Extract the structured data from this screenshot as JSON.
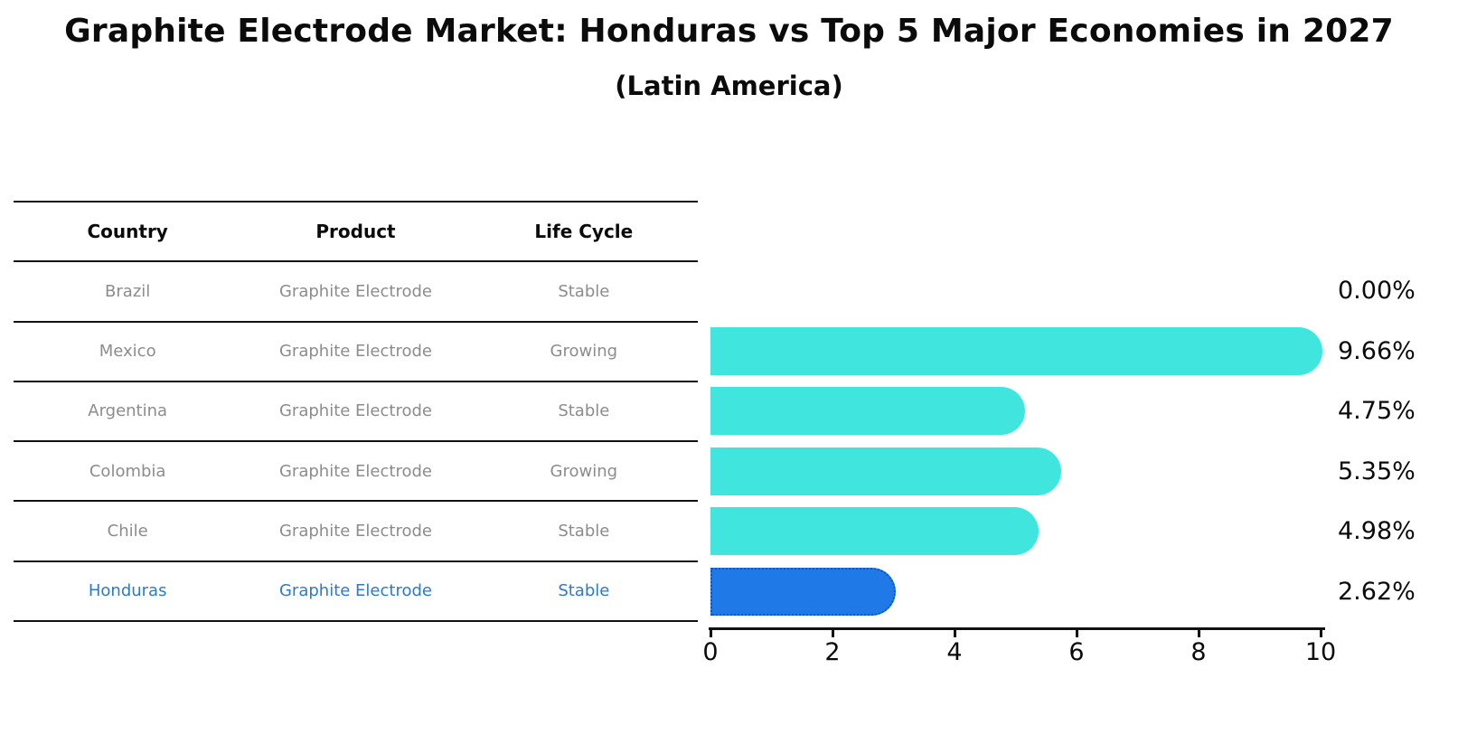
{
  "title": "Graphite Electrode Market: Honduras vs Top 5 Major Economies in 2027",
  "subtitle": "(Latin America)",
  "table": {
    "headers": [
      "Country",
      "Product",
      "Life Cycle"
    ],
    "rows": [
      {
        "country": "Brazil",
        "product": "Graphite Electrode",
        "life_cycle": "Stable",
        "highlighted": false
      },
      {
        "country": "Mexico",
        "product": "Graphite Electrode",
        "life_cycle": "Growing",
        "highlighted": false
      },
      {
        "country": "Argentina",
        "product": "Graphite Electrode",
        "life_cycle": "Stable",
        "highlighted": false
      },
      {
        "country": "Colombia",
        "product": "Graphite Electrode",
        "life_cycle": "Growing",
        "highlighted": false
      },
      {
        "country": "Chile",
        "product": "Graphite Electrode",
        "life_cycle": "Stable",
        "highlighted": false
      },
      {
        "country": "Honduras",
        "product": "Graphite Electrode",
        "life_cycle": "Stable",
        "highlighted": true
      }
    ]
  },
  "chart_data": {
    "type": "bar",
    "orientation": "horizontal",
    "categories": [
      "Brazil",
      "Mexico",
      "Argentina",
      "Colombia",
      "Chile",
      "Honduras"
    ],
    "values": [
      0.0,
      9.66,
      4.75,
      5.35,
      4.98,
      2.62
    ],
    "value_labels": [
      "0.00%",
      "9.66%",
      "4.75%",
      "5.35%",
      "4.98%",
      "2.62%"
    ],
    "title": "Graphite Electrode Market: Honduras vs Top 5 Major Economies in 2027",
    "subtitle": "(Latin America)",
    "xlabel": "",
    "ylabel": "",
    "xlim": [
      0,
      10
    ],
    "x_ticks": [
      0,
      2,
      4,
      6,
      8,
      10
    ],
    "grid": false,
    "legend": false,
    "highlight_category": "Honduras",
    "bar_color": "#40e5dd",
    "highlight_color": "#1f79e6",
    "highlight_border_color": "#1457ae"
  },
  "colors": {
    "ink": "#111111",
    "row_text": "#8c8c8c",
    "highlight_text": "#2d7ac8"
  }
}
